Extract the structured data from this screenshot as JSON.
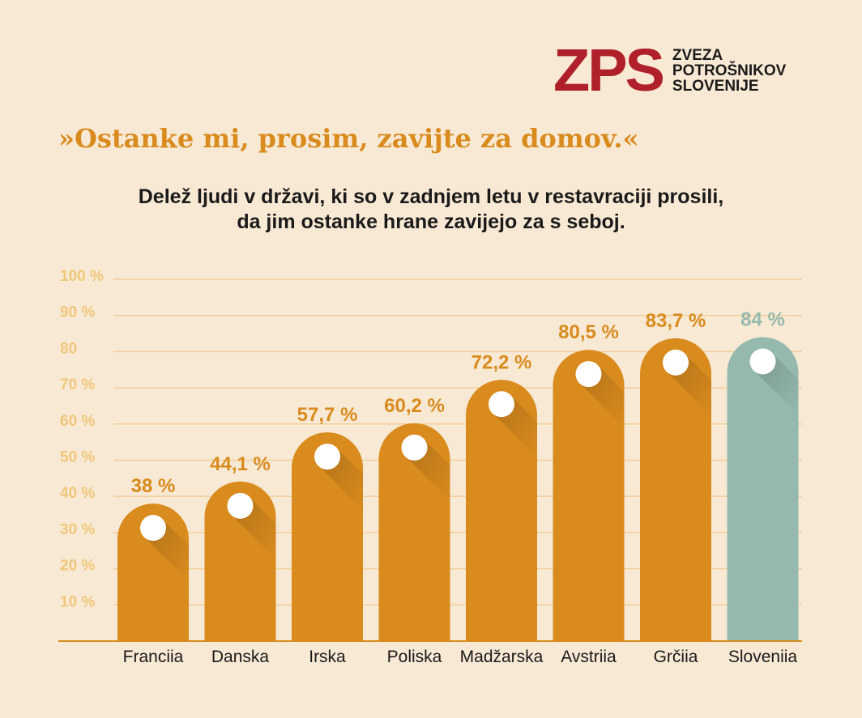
{
  "logo": {
    "mark": "ZPS",
    "lines": [
      "ZVEZA",
      "POTROŠNIKOV",
      "SLOVENIJE"
    ]
  },
  "headline": "»Ostanke mi, prosim, zavijte za domov.«",
  "subtitle": {
    "line1": "Delež ljudi v državi, ki so v zadnjem letu v restavraciji prosili,",
    "line2": "da jim ostanke hrane zavijejo za s seboj."
  },
  "colors": {
    "background": "#f8e9d4",
    "bar": "#d98b1e",
    "bar_highlight": "#95b9ad",
    "label": "#d98b1e",
    "label_highlight": "#95b9ad",
    "gridline": "#f0cf9c",
    "axis": "#d98b1e",
    "tick_label": "#f0c77a",
    "headline": "#d98b1e",
    "logo": "#b0202a"
  },
  "chart_data": {
    "type": "bar",
    "categories": [
      "Franciia",
      "Danska",
      "Irska",
      "Poliska",
      "Madžarska",
      "Avstriia",
      "Grčiia",
      "Sloveniia"
    ],
    "values": [
      38,
      44.1,
      57.7,
      60.2,
      72.2,
      80.5,
      83.7,
      84
    ],
    "data_labels": [
      "38 %",
      "44,1 %",
      "57,7 %",
      "60,2 %",
      "72,2 %",
      "80,5 %",
      "83,7 %",
      "84 %"
    ],
    "highlight_index": 7,
    "y_ticks": [
      10,
      20,
      30,
      40,
      50,
      60,
      70,
      80,
      90,
      100
    ],
    "y_tick_labels": [
      "10 %",
      "20 %",
      "30 %",
      "40 %",
      "50 %",
      "60 %",
      "70 %",
      "80",
      "90 %",
      "100 %"
    ],
    "ylim": [
      0,
      100
    ],
    "grid": true
  }
}
